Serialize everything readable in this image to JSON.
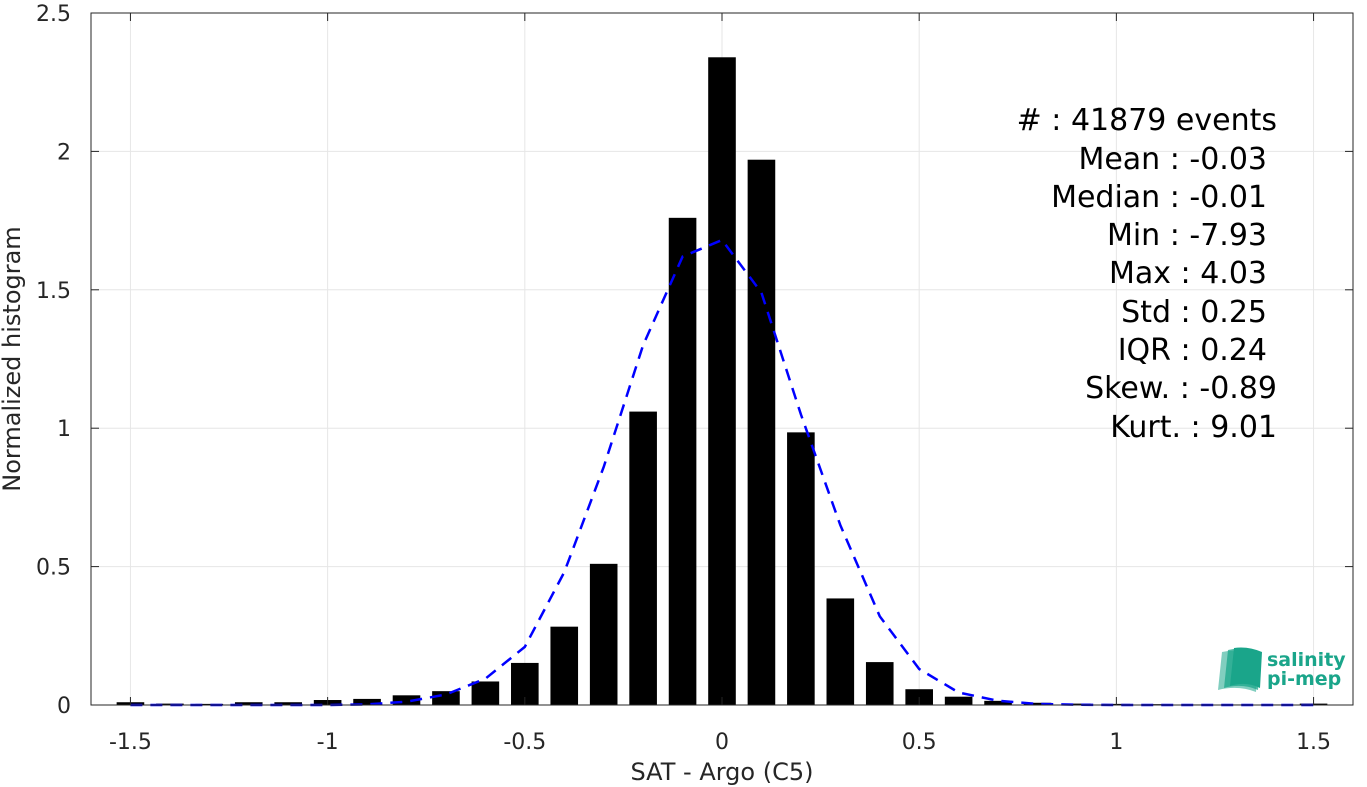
{
  "chart_data": {
    "type": "bar",
    "xlabel": "SAT - Argo (C5)",
    "ylabel": "Normalized histogram",
    "xlim": [
      -1.6,
      1.6
    ],
    "ylim": [
      0,
      2.5
    ],
    "grid": true,
    "x_ticks": [
      -1.5,
      -1,
      -0.5,
      0,
      0.5,
      1,
      1.5
    ],
    "x_tick_labels": [
      "-1.5",
      "-1",
      "-0.5",
      "0",
      "0.5",
      "1",
      "1.5"
    ],
    "y_ticks": [
      0,
      0.5,
      1,
      1.5,
      2,
      2.5
    ],
    "y_tick_labels": [
      "0",
      "0.5",
      "1",
      "1.5",
      "2",
      "2.5"
    ],
    "bins": {
      "centers": [
        -1.5,
        -1.4,
        -1.3,
        -1.2,
        -1.1,
        -1.0,
        -0.9,
        -0.8,
        -0.7,
        -0.6,
        -0.5,
        -0.4,
        -0.3,
        -0.2,
        -0.1,
        0.0,
        0.1,
        0.2,
        0.3,
        0.4,
        0.5,
        0.6,
        0.7,
        0.8,
        0.9,
        1.0,
        1.1,
        1.2,
        1.3,
        1.4,
        1.5
      ],
      "values": [
        0.01,
        0.005,
        0.004,
        0.01,
        0.01,
        0.018,
        0.022,
        0.035,
        0.05,
        0.085,
        0.152,
        0.283,
        0.51,
        1.06,
        1.76,
        2.34,
        1.97,
        0.985,
        0.385,
        0.155,
        0.057,
        0.03,
        0.015,
        0.008,
        0.005,
        0.004,
        0.003,
        0.002,
        0.002,
        0.002,
        0.005
      ],
      "color": "#000000"
    },
    "fit_curve": {
      "style": "dashed",
      "color": "#0000ff",
      "x": [
        -1.5,
        -1.4,
        -1.3,
        -1.2,
        -1.1,
        -1.0,
        -0.9,
        -0.8,
        -0.7,
        -0.6,
        -0.5,
        -0.4,
        -0.3,
        -0.2,
        -0.1,
        0.0,
        0.1,
        0.2,
        0.3,
        0.4,
        0.5,
        0.6,
        0.7,
        0.8,
        0.9,
        1.0,
        1.1,
        1.2,
        1.3,
        1.4,
        1.5
      ],
      "y": [
        0.0,
        0.0,
        0.0,
        0.0,
        0.0,
        0.0,
        0.002,
        0.012,
        0.038,
        0.095,
        0.21,
        0.48,
        0.86,
        1.3,
        1.62,
        1.68,
        1.49,
        1.05,
        0.65,
        0.32,
        0.13,
        0.045,
        0.015,
        0.004,
        0.001,
        0.0,
        0.0,
        0.0,
        0.0,
        0.0,
        0.0
      ]
    }
  },
  "stats": [
    "#  : 41879 events",
    "Mean : -0.03",
    "Median : -0.01",
    "Min : -7.93",
    "Max : 4.03",
    "Std : 0.25",
    "IQR : 0.24",
    "Skew. : -0.89",
    "Kurt. : 9.01"
  ],
  "logo": {
    "line1": "salinity",
    "line2": "pi-mep",
    "color": "#1aa58a",
    "icon": "salinity-wave-icon"
  }
}
